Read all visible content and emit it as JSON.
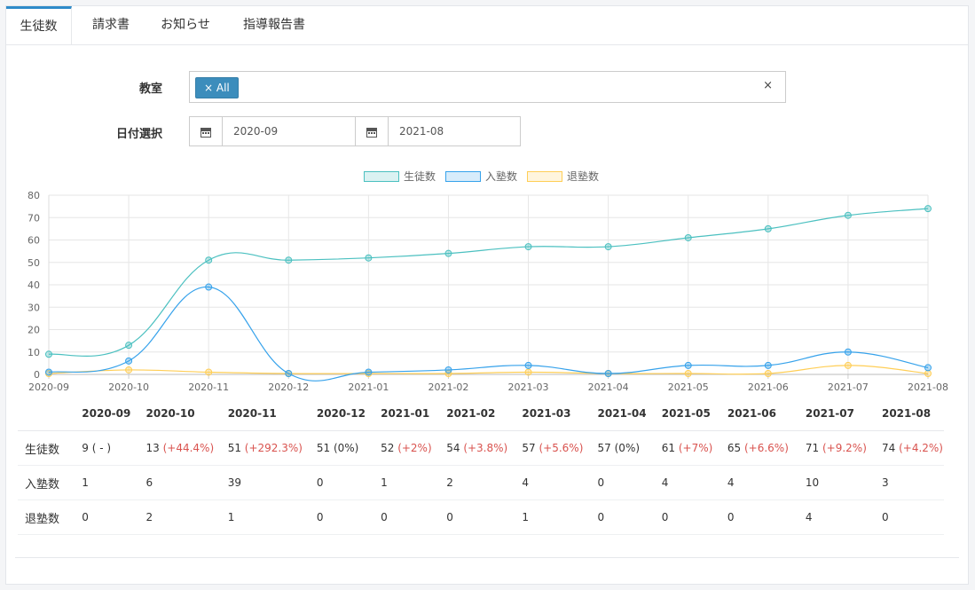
{
  "tabs": [
    {
      "label": "生徒数",
      "active": true
    },
    {
      "label": "請求書",
      "active": false
    },
    {
      "label": "お知らせ",
      "active": false
    },
    {
      "label": "指導報告書",
      "active": false
    }
  ],
  "filters": {
    "classroom_label": "教室",
    "classroom_chip": "× All",
    "clear_icon": "×",
    "date_label": "日付選択",
    "date_from": "2020-09",
    "date_to": "2021-08",
    "calendar_icon": "calendar-icon"
  },
  "colors": {
    "students": "#4bc0c0",
    "enrolled": "#36a2eb",
    "withdrawn": "#ffce56",
    "accent": "#3c8dbc",
    "increase": "#d9534f"
  },
  "chart_data": {
    "type": "line",
    "categories": [
      "2020-09",
      "2020-10",
      "2020-11",
      "2020-12",
      "2021-01",
      "2021-02",
      "2021-03",
      "2021-04",
      "2021-05",
      "2021-06",
      "2021-07",
      "2021-08"
    ],
    "series": [
      {
        "name": "生徒数",
        "values": [
          9,
          13,
          51,
          51,
          52,
          54,
          57,
          57,
          61,
          65,
          71,
          74
        ]
      },
      {
        "name": "入塾数",
        "values": [
          1,
          6,
          39,
          0,
          1,
          2,
          4,
          0,
          4,
          4,
          10,
          3
        ]
      },
      {
        "name": "退塾数",
        "values": [
          0,
          2,
          1,
          0,
          0,
          0,
          1,
          0,
          0,
          0,
          4,
          0
        ]
      }
    ],
    "yticks": [
      "0",
      "10",
      "20",
      "30",
      "40",
      "50",
      "60",
      "70",
      "80"
    ],
    "ylim": [
      0,
      80
    ],
    "grid": true,
    "legend": "top-center"
  },
  "table": {
    "headers": [
      "",
      "2020-09",
      "2020-10",
      "2020-11",
      "2020-12",
      "2021-01",
      "2021-02",
      "2021-03",
      "2021-04",
      "2021-05",
      "2021-06",
      "2021-07",
      "2021-08"
    ],
    "rows": [
      {
        "label": "生徒数",
        "cells": [
          {
            "v": "9",
            "p": "( - )",
            "inc": false
          },
          {
            "v": "13",
            "p": "(+44.4%)",
            "inc": true
          },
          {
            "v": "51",
            "p": "(+292.3%)",
            "inc": true
          },
          {
            "v": "51",
            "p": "(0%)",
            "inc": false
          },
          {
            "v": "52",
            "p": "(+2%)",
            "inc": true
          },
          {
            "v": "54",
            "p": "(+3.8%)",
            "inc": true
          },
          {
            "v": "57",
            "p": "(+5.6%)",
            "inc": true
          },
          {
            "v": "57",
            "p": "(0%)",
            "inc": false
          },
          {
            "v": "61",
            "p": "(+7%)",
            "inc": true
          },
          {
            "v": "65",
            "p": "(+6.6%)",
            "inc": true
          },
          {
            "v": "71",
            "p": "(+9.2%)",
            "inc": true
          },
          {
            "v": "74",
            "p": "(+4.2%)",
            "inc": true
          }
        ]
      },
      {
        "label": "入塾数",
        "cells": [
          {
            "v": "1"
          },
          {
            "v": "6"
          },
          {
            "v": "39"
          },
          {
            "v": "0"
          },
          {
            "v": "1"
          },
          {
            "v": "2"
          },
          {
            "v": "4"
          },
          {
            "v": "0"
          },
          {
            "v": "4"
          },
          {
            "v": "4"
          },
          {
            "v": "10"
          },
          {
            "v": "3"
          }
        ]
      },
      {
        "label": "退塾数",
        "cells": [
          {
            "v": "0"
          },
          {
            "v": "2"
          },
          {
            "v": "1"
          },
          {
            "v": "0"
          },
          {
            "v": "0"
          },
          {
            "v": "0"
          },
          {
            "v": "1"
          },
          {
            "v": "0"
          },
          {
            "v": "0"
          },
          {
            "v": "0"
          },
          {
            "v": "4"
          },
          {
            "v": "0"
          }
        ]
      }
    ]
  }
}
